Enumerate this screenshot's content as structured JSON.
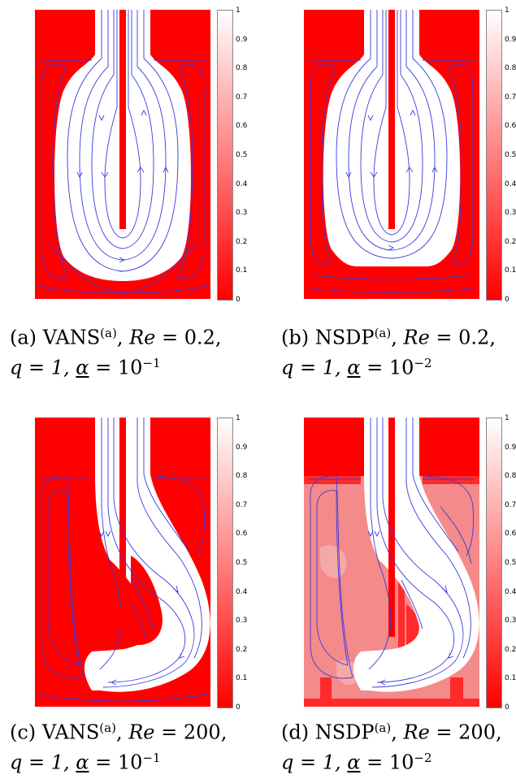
{
  "colorbar": {
    "ticks": [
      "1",
      "0.9",
      "0.8",
      "0.7",
      "0.6",
      "0.5",
      "0.4",
      "0.3",
      "0.2",
      "0.1",
      "0"
    ]
  },
  "panels": [
    {
      "id": "a",
      "caption_prefix": "(a)",
      "method": "VANS",
      "superscript": "(a)",
      "re_label": "Re",
      "re_value": "0.2",
      "q_text": "q = 1,",
      "alpha_symbol": "α",
      "alpha_value": "10",
      "alpha_exp": "−1"
    },
    {
      "id": "b",
      "caption_prefix": "(b)",
      "method": "NSDP",
      "superscript": "(a)",
      "re_label": "Re",
      "re_value": "0.2",
      "q_text": "q = 1,",
      "alpha_symbol": "α",
      "alpha_value": "10",
      "alpha_exp": "−2"
    },
    {
      "id": "c",
      "caption_prefix": "(c)",
      "method": "VANS",
      "superscript": "(a)",
      "re_label": "Re",
      "re_value": "200",
      "q_text": "q = 1,",
      "alpha_symbol": "α",
      "alpha_value": "10",
      "alpha_exp": "−1"
    },
    {
      "id": "d",
      "caption_prefix": "(d)",
      "method": "NSDP",
      "superscript": "(a)",
      "re_label": "Re",
      "re_value": "200",
      "q_text": "q = 1,",
      "alpha_symbol": "α",
      "alpha_value": "10",
      "alpha_exp": "−2"
    }
  ],
  "colors": {
    "solid": "#ff0000",
    "fluid": "#ffffff",
    "streamline": "#3a3ae0",
    "intermediate": "#f48a8a"
  }
}
